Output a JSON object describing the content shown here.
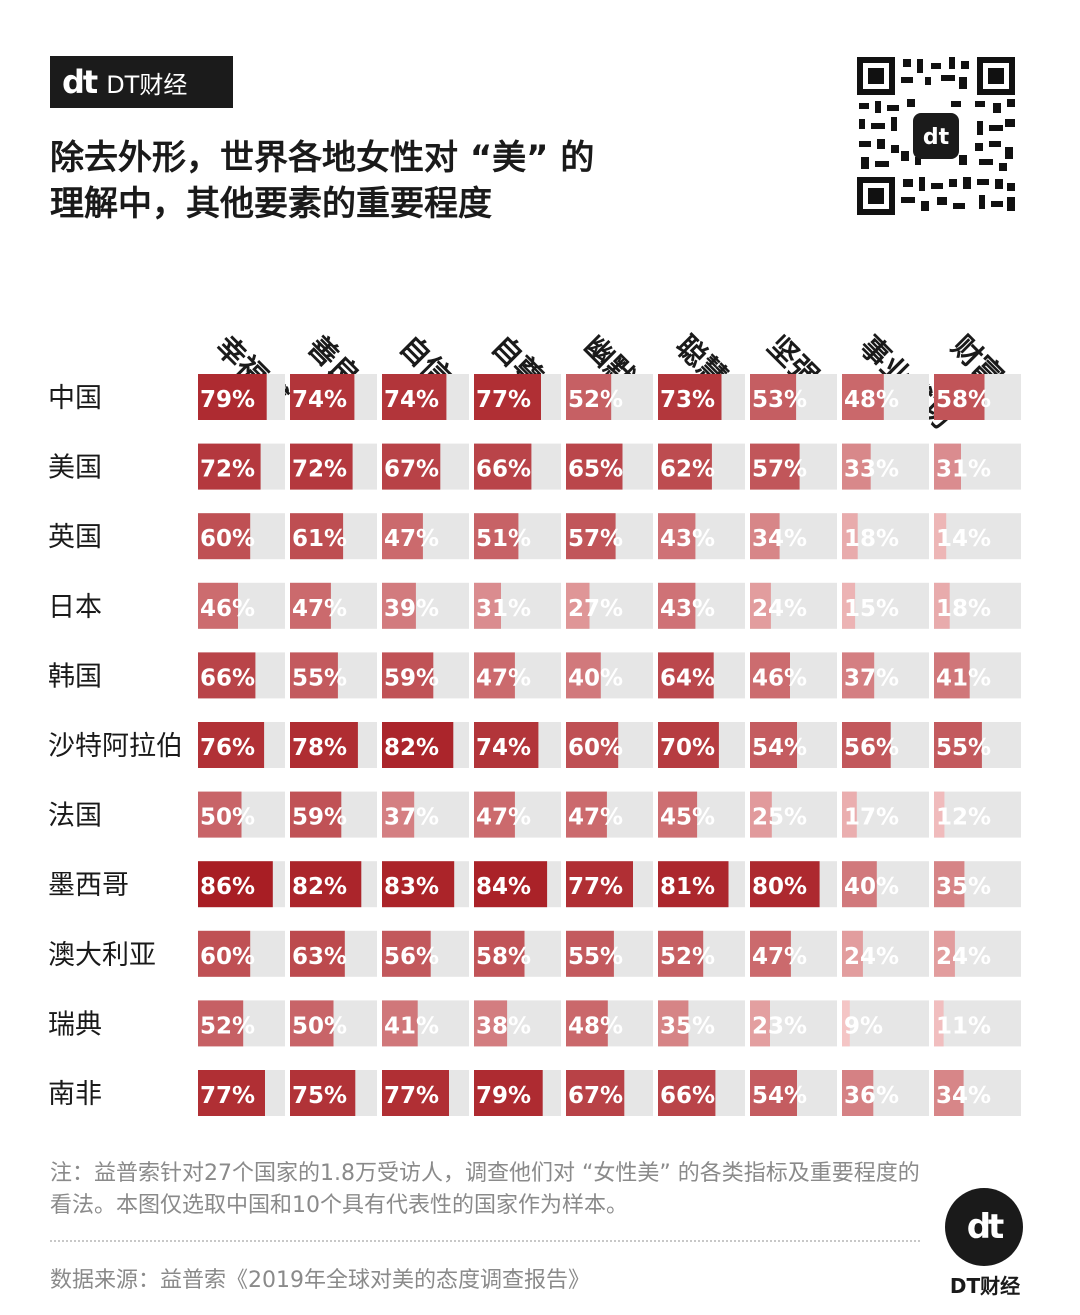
{
  "brand": {
    "mark": "dt",
    "name": "DT财经"
  },
  "title_line1": "除去外形，世界各地女性对 “美” 的",
  "title_line2": "理解中，其他要素的重要程度",
  "qr_code_icon": "qr-code",
  "chart_data": {
    "type": "heatmap",
    "title": "除去外形，世界各地女性对 “美” 的理解中，其他要素的重要程度",
    "value_format": "percent",
    "columns": [
      "幸福感",
      "善良",
      "自信",
      "自尊",
      "幽默",
      "聪慧",
      "坚强",
      "事业成功",
      "财富"
    ],
    "rows": [
      {
        "name": "中国",
        "values": [
          79,
          74,
          74,
          77,
          52,
          73,
          53,
          48,
          58
        ]
      },
      {
        "name": "美国",
        "values": [
          72,
          72,
          67,
          66,
          65,
          62,
          57,
          33,
          31
        ]
      },
      {
        "name": "英国",
        "values": [
          60,
          61,
          47,
          51,
          57,
          43,
          34,
          18,
          14
        ]
      },
      {
        "name": "日本",
        "values": [
          46,
          47,
          39,
          31,
          27,
          43,
          24,
          15,
          18
        ]
      },
      {
        "name": "韩国",
        "values": [
          66,
          55,
          59,
          47,
          40,
          64,
          46,
          37,
          41
        ]
      },
      {
        "name": "沙特阿拉伯",
        "values": [
          76,
          78,
          82,
          74,
          60,
          70,
          54,
          56,
          55
        ]
      },
      {
        "name": "法国",
        "values": [
          50,
          59,
          37,
          47,
          47,
          45,
          25,
          17,
          12
        ]
      },
      {
        "name": "墨西哥",
        "values": [
          86,
          82,
          83,
          84,
          77,
          81,
          80,
          40,
          35
        ]
      },
      {
        "name": "澳大利亚",
        "values": [
          60,
          63,
          56,
          58,
          55,
          52,
          47,
          24,
          24
        ]
      },
      {
        "name": "瑞典",
        "values": [
          52,
          50,
          41,
          38,
          48,
          35,
          23,
          9,
          11
        ]
      },
      {
        "name": "南非",
        "values": [
          77,
          75,
          77,
          79,
          67,
          66,
          54,
          36,
          34
        ]
      }
    ],
    "colors": {
      "track": "#e6e6e6",
      "high": "#a81e24",
      "low": "#f6c9c9"
    }
  },
  "note": "注：益普索针对27个国家的1.8万受访人，调查他们对 “女性美” 的各类指标及重要程度的看法。本图仅选取中国和10个具有代表性的国家作为样本。",
  "source": "数据来源：益普索《2019年全球对美的态度调查报告》",
  "footer_logo": {
    "mark": "dt",
    "name": "DT财经"
  }
}
